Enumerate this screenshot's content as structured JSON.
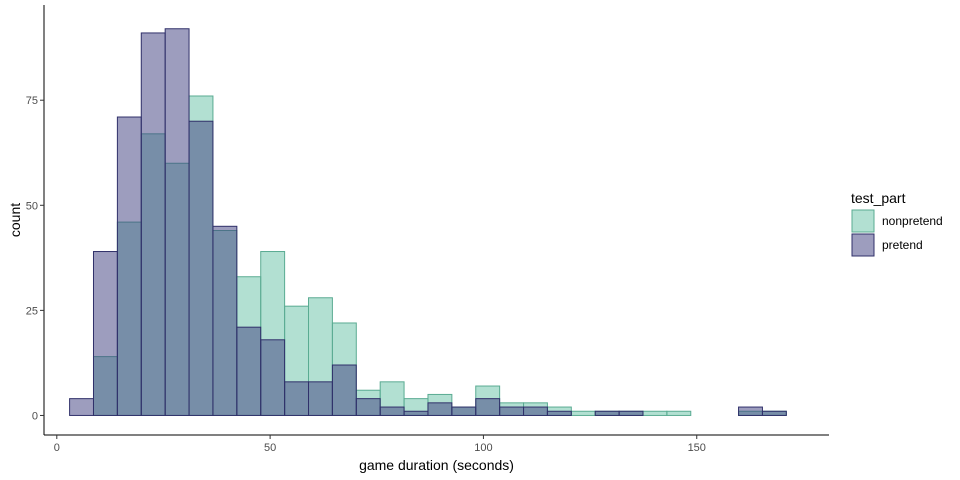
{
  "chart_data": {
    "type": "histogram",
    "xlabel": "game duration (seconds)",
    "ylabel": "count",
    "xlim": [
      -3,
      181
    ],
    "ylim": [
      -4.65,
      97.65
    ],
    "xticks": [
      0,
      50,
      100,
      150
    ],
    "yticks": [
      0,
      25,
      50,
      75
    ],
    "bin_width": 5.6,
    "bin_start": 3.0,
    "legend": {
      "title": "test_part",
      "position": "right",
      "entries": [
        "nonpretend",
        "pretend"
      ]
    },
    "series": [
      {
        "name": "nonpretend",
        "fill": "#66c2a5",
        "stroke": "#5aab92",
        "opacity": 0.5,
        "values": [
          0,
          14,
          46,
          67,
          60,
          76,
          44,
          33,
          39,
          26,
          28,
          22,
          6,
          8,
          4,
          5,
          2,
          7,
          3,
          3,
          2,
          1,
          1,
          1,
          1,
          1,
          0,
          0,
          1,
          1
        ]
      },
      {
        "name": "pretend",
        "fill": "#3b3b7e",
        "stroke": "#30306a",
        "opacity": 0.5,
        "values": [
          4,
          39,
          71,
          91,
          92,
          70,
          45,
          21,
          18,
          8,
          8,
          12,
          4,
          2,
          1,
          3,
          2,
          4,
          2,
          2,
          1,
          0,
          1,
          1,
          0,
          0,
          0,
          0,
          2,
          1
        ]
      }
    ]
  }
}
